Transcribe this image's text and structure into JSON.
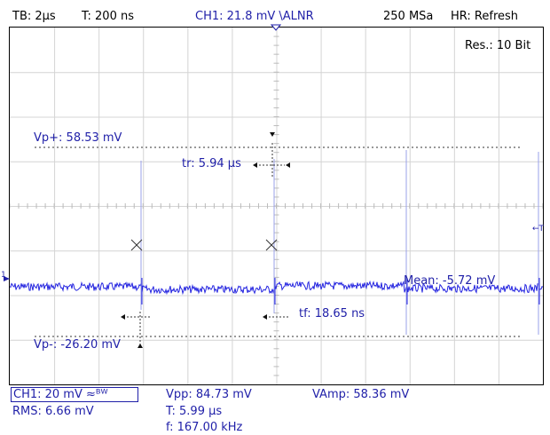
{
  "header": {
    "timebase": "TB: 2µs",
    "trigger_time": "T: 200 ns",
    "trigger": "CH1: 21.8 mV \\ALNR",
    "sample_rate": "250 MSa",
    "acq_mode": "HR: Refresh"
  },
  "screen": {
    "resolution": "Res.: 10 Bit",
    "channel_marker": "1",
    "trigger_marker": "T",
    "measurements": {
      "vp_plus": "Vp+: 58.53 mV",
      "tr": "tr: 5.94 µs",
      "mean": "Mean: -5.72 mV",
      "tf": "tf: 18.65 ns",
      "vp_minus": "Vp-: -26.20 mV"
    }
  },
  "footer": {
    "ch1_setting": "CH1: 20 mV ≈ᴮᵂ",
    "rms": "RMS: 6.66 mV",
    "vpp": "Vpp: 84.73 mV",
    "period": "T: 5.99 µs",
    "frequency": "f: 167.00 kHz",
    "vamp": "VAmp: 58.36 mV"
  },
  "colors": {
    "trace": "#2424e0",
    "text_blue": "#1f1fa8",
    "grid": "#d4d4d4",
    "cursor": "#000000"
  }
}
